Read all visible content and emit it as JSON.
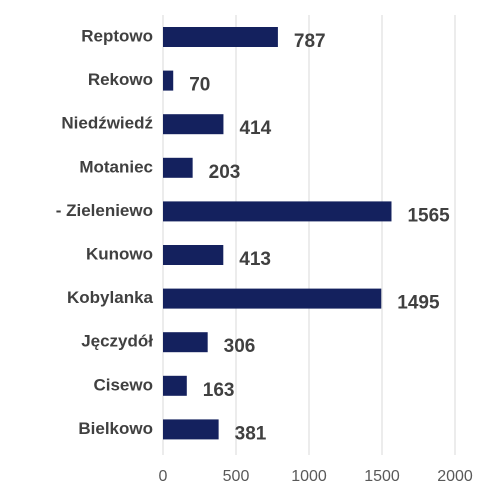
{
  "chart_data": {
    "type": "bar",
    "orientation": "horizontal",
    "categories": [
      "Reptowo",
      "Rekowo",
      "Niedźwiedź",
      "Motaniec",
      "- Zieleniewo",
      "Kunowo",
      "Kobylanka",
      "Jęczydół",
      "Cisewo",
      "Bielkowo"
    ],
    "values": [
      787,
      70,
      414,
      203,
      1565,
      413,
      1495,
      306,
      163,
      381
    ],
    "color": "#14215e",
    "xlim": [
      0,
      2000
    ],
    "xticks": [
      0,
      500,
      1000,
      1500,
      2000
    ],
    "grid": true
  }
}
